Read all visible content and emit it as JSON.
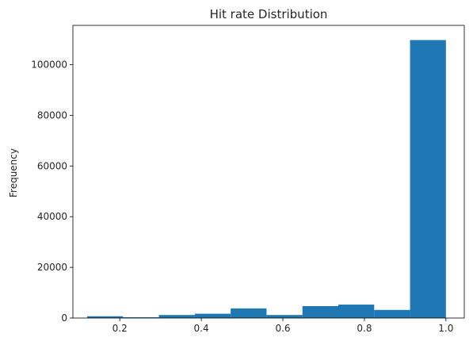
{
  "chart_data": {
    "type": "bar",
    "title": "Hit rate Distribution",
    "xlabel": "",
    "ylabel": "Frequency",
    "xlim": [
      0.085,
      1.045
    ],
    "ylim": [
      0,
      115500
    ],
    "grid": false,
    "bar_color": "#1f77b4",
    "bin_edges": [
      0.12,
      0.208,
      0.296,
      0.384,
      0.472,
      0.56,
      0.648,
      0.736,
      0.824,
      0.912,
      1.0
    ],
    "values": [
      700,
      300,
      1200,
      1700,
      3800,
      1200,
      4700,
      5300,
      3200,
      109700
    ],
    "x_ticks": [
      0.2,
      0.4,
      0.6,
      0.8,
      1.0
    ],
    "x_tick_labels": [
      "0.2",
      "0.4",
      "0.6",
      "0.8",
      "1.0"
    ],
    "y_ticks": [
      0,
      20000,
      40000,
      60000,
      80000,
      100000
    ],
    "y_tick_labels": [
      "0",
      "20000",
      "40000",
      "60000",
      "80000",
      "100000"
    ]
  }
}
